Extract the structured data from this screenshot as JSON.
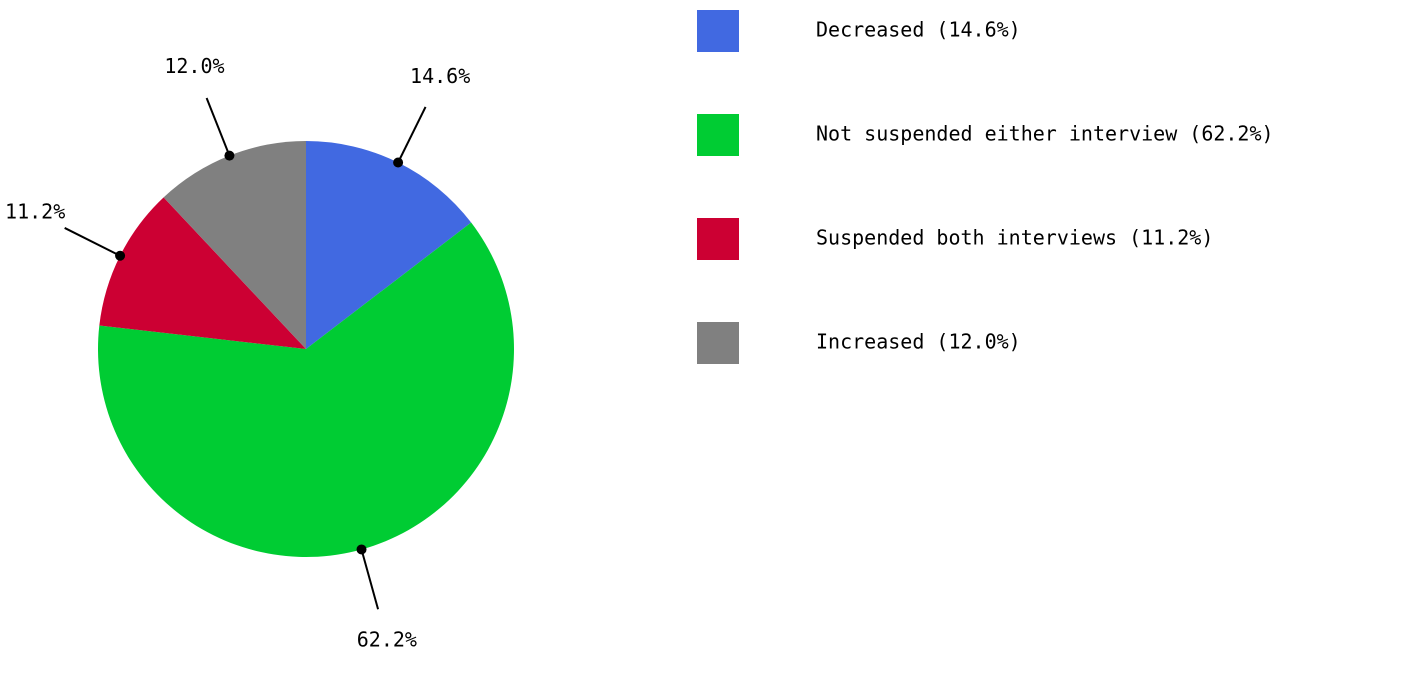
{
  "chart_data": {
    "type": "pie",
    "categories": [
      "Decreased (14.6%)",
      "Not suspended either interview (62.2%)",
      "Suspended both interviews (11.2%)",
      "Increased (12.0%)"
    ],
    "values": [
      14.6,
      62.2,
      11.2,
      12.0
    ],
    "value_labels": [
      "14.6%",
      "62.2%",
      "11.2%",
      "12.0%"
    ],
    "colors": [
      "#4169e1",
      "#00cc33",
      "#cc0033",
      "#808080"
    ]
  }
}
